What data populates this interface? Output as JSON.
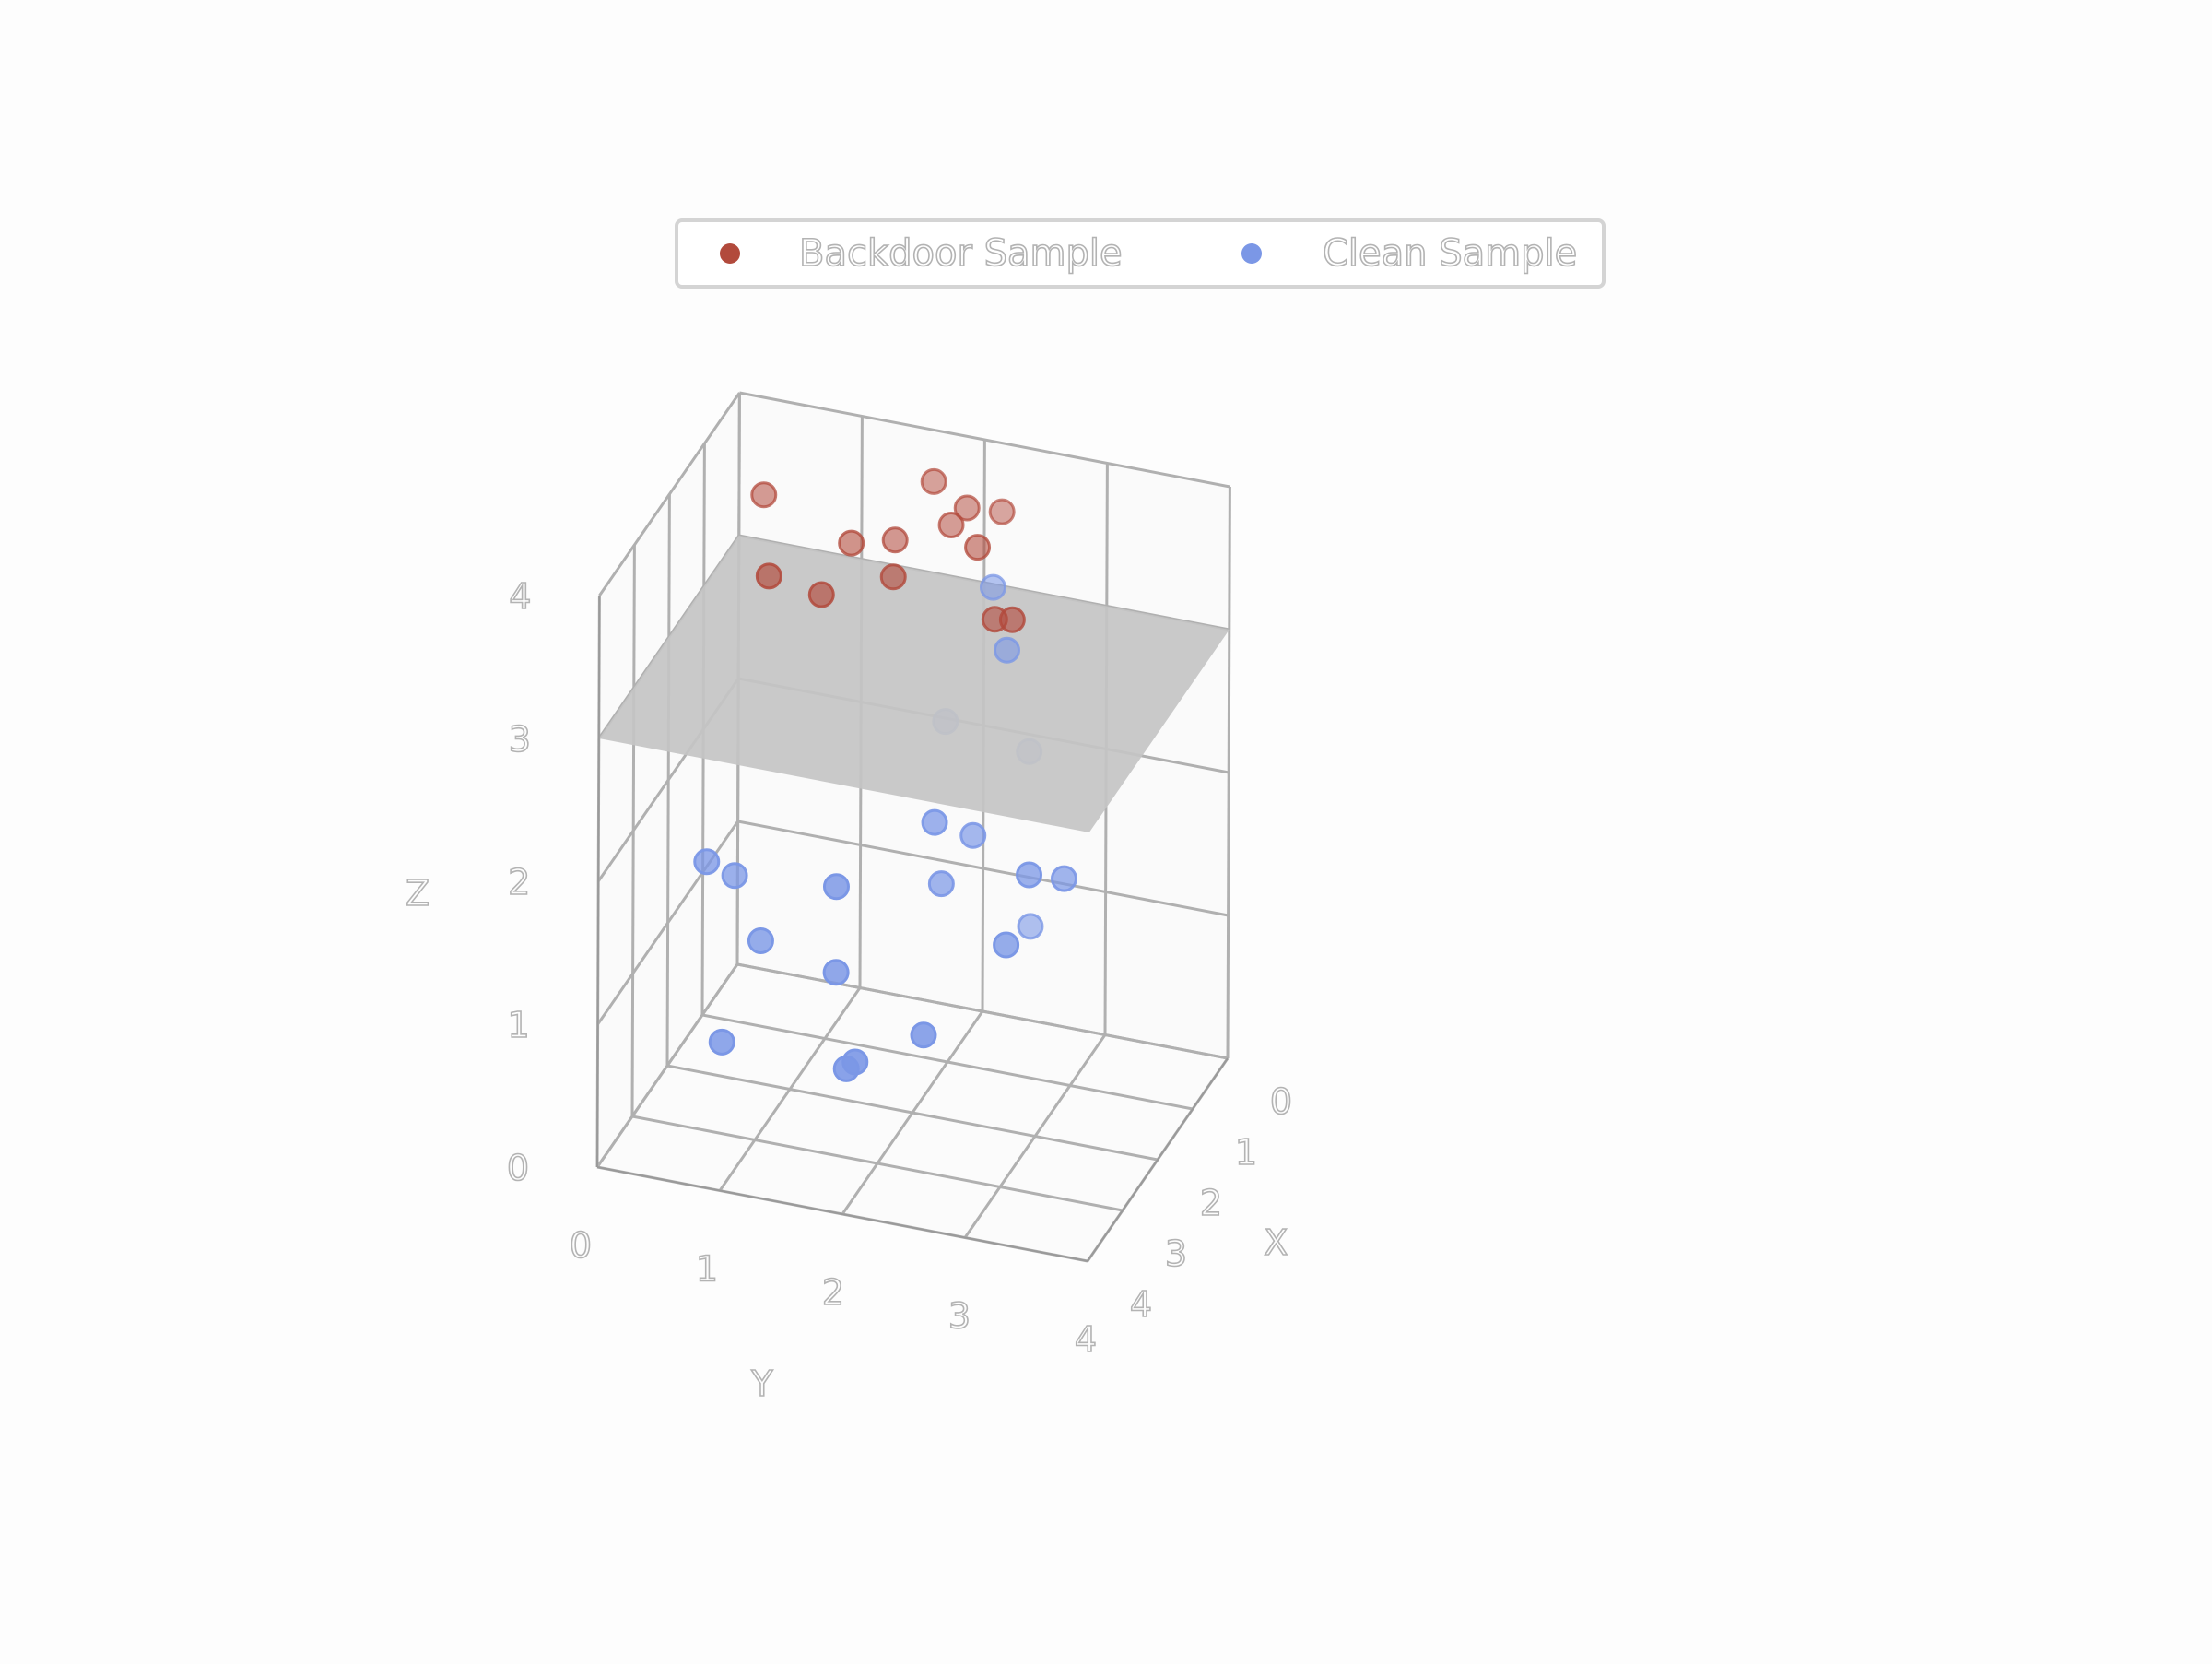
{
  "chart_data": {
    "type": "scatter",
    "dimensions": 3,
    "title": "",
    "xlabel": "X",
    "ylabel": "Y",
    "zlabel": "Z",
    "xlim": [
      0,
      4
    ],
    "ylim": [
      0,
      4
    ],
    "zlim": [
      0,
      4
    ],
    "x_ticks": [
      "0",
      "1",
      "2",
      "3",
      "4"
    ],
    "y_ticks": [
      "0",
      "1",
      "2",
      "3",
      "4"
    ],
    "z_ticks": [
      "0",
      "1",
      "2",
      "3",
      "4"
    ],
    "grid": true,
    "legend_position": "top-center",
    "decision_plane": {
      "z": 3,
      "x_range": [
        0,
        4
      ],
      "y_range": [
        0,
        4
      ],
      "color": "#c4c4c4"
    },
    "series": [
      {
        "name": "Backdoor Sample",
        "color": "#b24a3c",
        "points": [
          [
            1.6,
            0.7,
            3.4
          ],
          [
            1.5,
            1.1,
            3.3
          ],
          [
            1.0,
            1.2,
            3.5
          ],
          [
            0.8,
            1.5,
            3.5
          ],
          [
            1.2,
            1.6,
            3.4
          ],
          [
            0.6,
            1.9,
            3.6
          ],
          [
            0.9,
            2.2,
            3.6
          ],
          [
            1.3,
            2.6,
            3.3
          ],
          [
            0.5,
            2.0,
            3.7
          ],
          [
            0.7,
            0.4,
            3.6
          ],
          [
            1.1,
            2.4,
            3.2
          ],
          [
            0.4,
            1.7,
            3.8
          ],
          [
            0.2,
            2.2,
            3.6
          ]
        ]
      },
      {
        "name": "Clean Sample",
        "color": "#7b97e6",
        "points": [
          [
            2.2,
            0.6,
            1.5
          ],
          [
            1.1,
            2.5,
            3.0
          ],
          [
            2.3,
            0.4,
            1.6
          ],
          [
            1.8,
            2.2,
            2.7
          ],
          [
            2.8,
            1.6,
            1.8
          ],
          [
            2.5,
            0.9,
            1.2
          ],
          [
            2.8,
            1.6,
            1.2
          ],
          [
            3.2,
            1.8,
            0.7
          ],
          [
            2.9,
            0.7,
            0.6
          ],
          [
            0.8,
            2.3,
            3.3
          ],
          [
            3.1,
            2.4,
            1.0
          ],
          [
            1.9,
            2.2,
            1.6
          ],
          [
            2.1,
            2.2,
            2.1
          ],
          [
            1.7,
            2.4,
            1.9
          ],
          [
            2.5,
            2.9,
            1.5
          ],
          [
            2.2,
            3.0,
            1.9
          ],
          [
            1.9,
            3.2,
            1.8
          ],
          [
            3.3,
            1.9,
            0.8
          ],
          [
            1.1,
            2.7,
            1.1
          ],
          [
            0.8,
            2.6,
            2.2
          ]
        ]
      }
    ]
  }
}
